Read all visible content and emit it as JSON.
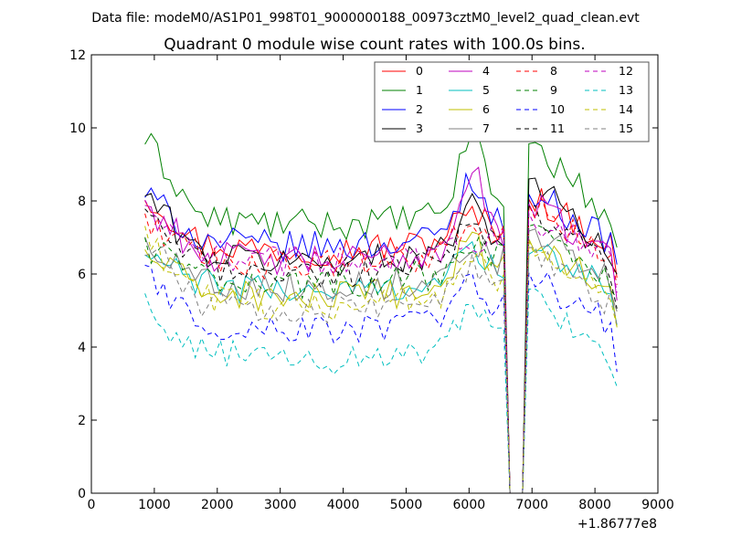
{
  "header": {
    "data_file": "Data file: modeM0/AS1P01_998T01_9000000188_00973cztM0_level2_quad_clean.evt"
  },
  "chart_data": {
    "type": "line",
    "title": "Quadrant 0 module wise count rates with 100.0s bins.",
    "xlabel": "",
    "ylabel": "",
    "x_offset_label": "+1.86777e8",
    "xlim": [
      0,
      9000
    ],
    "ylim": [
      0,
      12
    ],
    "xticks": [
      0,
      1000,
      2000,
      3000,
      4000,
      5000,
      6000,
      7000,
      8000,
      9000
    ],
    "yticks": [
      0,
      2,
      4,
      6,
      8,
      10,
      12
    ],
    "grid": false,
    "legend_position": "top-right",
    "legend_columns": 4,
    "x": {
      "start": 850,
      "step": 100,
      "count": 76,
      "gap_points": [
        6650,
        6750,
        6850
      ]
    },
    "series": [
      {
        "name": "0",
        "color": "#ff0000",
        "dash": "solid",
        "base": 6.9,
        "peak_left": 8.2,
        "peak_right": 8.2,
        "hump": 7.6
      },
      {
        "name": "1",
        "color": "#008000",
        "dash": "solid",
        "base": 7.6,
        "peak_left": 9.7,
        "peak_right": 9.7,
        "hump": 10.0
      },
      {
        "name": "2",
        "color": "#0000ff",
        "dash": "solid",
        "base": 7.0,
        "peak_left": 8.2,
        "peak_right": 8.3,
        "hump": 8.7
      },
      {
        "name": "3",
        "color": "#000000",
        "dash": "solid",
        "base": 6.6,
        "peak_left": 8.2,
        "peak_right": 8.7,
        "hump": 8.1
      },
      {
        "name": "4",
        "color": "#bf00bf",
        "dash": "solid",
        "base": 6.6,
        "peak_left": 7.9,
        "peak_right": 8.0,
        "hump": 9.0
      },
      {
        "name": "5",
        "color": "#00bfbf",
        "dash": "solid",
        "base": 5.8,
        "peak_left": 6.5,
        "peak_right": 6.6,
        "hump": 6.6
      },
      {
        "name": "6",
        "color": "#bfbf00",
        "dash": "solid",
        "base": 5.6,
        "peak_left": 6.6,
        "peak_right": 7.0,
        "hump": 7.2
      },
      {
        "name": "7",
        "color": "#808080",
        "dash": "solid",
        "base": 5.9,
        "peak_left": 6.9,
        "peak_right": 7.2,
        "hump": 7.0
      },
      {
        "name": "8",
        "color": "#ff0000",
        "dash": "dashed",
        "base": 6.5,
        "peak_left": 7.5,
        "peak_right": 7.9,
        "hump": 7.2
      },
      {
        "name": "9",
        "color": "#008000",
        "dash": "dashed",
        "base": 6.0,
        "peak_left": 6.8,
        "peak_right": 7.3,
        "hump": 6.8
      },
      {
        "name": "10",
        "color": "#0000ff",
        "dash": "dashed",
        "base": 4.7,
        "peak_left": 6.0,
        "peak_right": 6.0,
        "hump": 5.7
      },
      {
        "name": "11",
        "color": "#000000",
        "dash": "dashed",
        "base": 6.3,
        "peak_left": 7.5,
        "peak_right": 7.8,
        "hump": 7.4
      },
      {
        "name": "12",
        "color": "#bf00bf",
        "dash": "dashed",
        "base": 6.6,
        "peak_left": 7.7,
        "peak_right": 7.6,
        "hump": 7.0
      },
      {
        "name": "13",
        "color": "#00bfbf",
        "dash": "dashed",
        "base": 3.9,
        "peak_left": 5.1,
        "peak_right": 5.5,
        "hump": 5.0
      },
      {
        "name": "14",
        "color": "#bfbf00",
        "dash": "dashed",
        "base": 5.4,
        "peak_left": 6.9,
        "peak_right": 6.8,
        "hump": 6.5
      },
      {
        "name": "15",
        "color": "#808080",
        "dash": "dashed",
        "base": 5.3,
        "peak_left": 6.9,
        "peak_right": 6.6,
        "hump": 6.2
      }
    ]
  }
}
